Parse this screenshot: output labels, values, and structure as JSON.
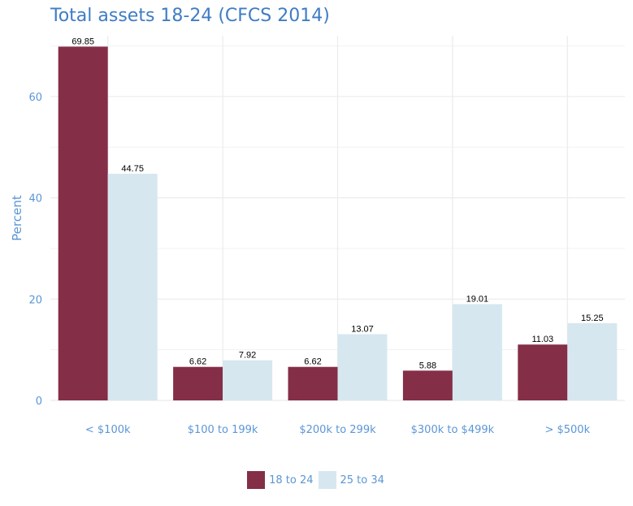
{
  "chart_data": {
    "type": "bar",
    "title": "Total assets 18-24 (CFCS 2014)",
    "xlabel": "",
    "ylabel": "Percent",
    "categories": [
      "< $100k",
      "$100 to 199k",
      "$200k to 299k",
      "$300k to $499k",
      "> $500k"
    ],
    "series": [
      {
        "name": "18 to 24",
        "color": "#852e47",
        "values": [
          69.85,
          6.62,
          6.62,
          5.88,
          11.03
        ]
      },
      {
        "name": "25 to 34",
        "color": "#d6e7f0",
        "values": [
          44.75,
          7.92,
          13.07,
          19.01,
          15.25
        ]
      }
    ],
    "ylim": [
      0,
      72
    ],
    "yticks": [
      0,
      20,
      40,
      60
    ],
    "grid": true,
    "legend_position": "bottom",
    "data_labels": true
  }
}
